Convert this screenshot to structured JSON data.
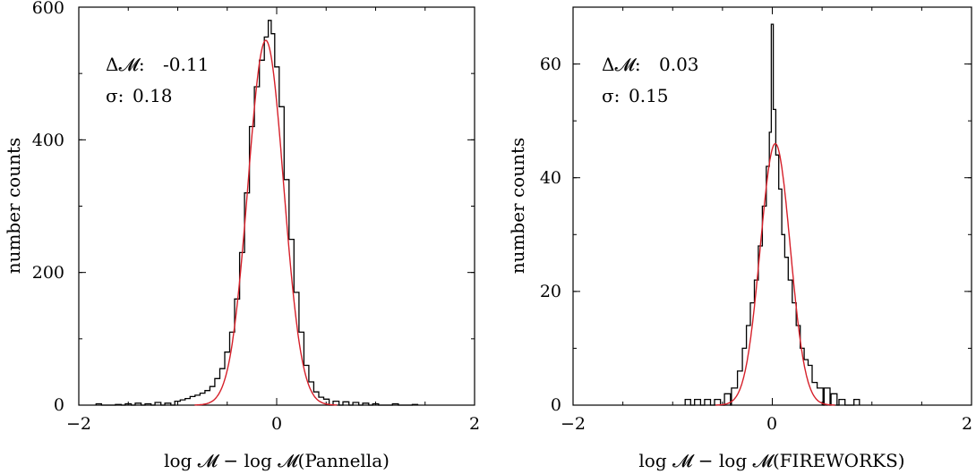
{
  "chart_data": [
    {
      "type": "histogram",
      "xlabel": "log 𝓜 − log 𝓜(Pannella)",
      "ylabel": "number counts",
      "xlim": [
        -2,
        2
      ],
      "ylim": [
        0,
        600
      ],
      "xticks": [
        -2,
        0,
        2
      ],
      "xtick_labels": [
        "−2",
        "0",
        "2"
      ],
      "yticks": [
        0,
        200,
        400,
        600
      ],
      "ytick_labels": [
        "0",
        "200",
        "400",
        "600"
      ],
      "annotations": [
        {
          "label": "Δ𝓜:",
          "value": "-0.11"
        },
        {
          "label": "σ:",
          "value": "0.18"
        }
      ],
      "fit": {
        "kind": "gaussian",
        "mean": -0.11,
        "sigma": 0.18,
        "amplitude": 550,
        "color": "#d6202a"
      },
      "hist_color": "#000000",
      "bins": [
        [
          -1.8,
          2
        ],
        [
          -1.6,
          1
        ],
        [
          -1.5,
          2
        ],
        [
          -1.4,
          3
        ],
        [
          -1.3,
          2
        ],
        [
          -1.2,
          4
        ],
        [
          -1.1,
          3
        ],
        [
          -1.0,
          6
        ],
        [
          -0.95,
          8
        ],
        [
          -0.9,
          10
        ],
        [
          -0.85,
          13
        ],
        [
          -0.8,
          15
        ],
        [
          -0.75,
          18
        ],
        [
          -0.7,
          22
        ],
        [
          -0.65,
          28
        ],
        [
          -0.6,
          40
        ],
        [
          -0.55,
          55
        ],
        [
          -0.5,
          80
        ],
        [
          -0.45,
          110
        ],
        [
          -0.4,
          160
        ],
        [
          -0.35,
          230
        ],
        [
          -0.3,
          320
        ],
        [
          -0.25,
          420
        ],
        [
          -0.2,
          480
        ],
        [
          -0.15,
          520
        ],
        [
          -0.1,
          555
        ],
        [
          -0.07,
          580
        ],
        [
          -0.04,
          560
        ],
        [
          0.0,
          510
        ],
        [
          0.05,
          450
        ],
        [
          0.1,
          340
        ],
        [
          0.15,
          250
        ],
        [
          0.2,
          170
        ],
        [
          0.25,
          110
        ],
        [
          0.3,
          60
        ],
        [
          0.35,
          35
        ],
        [
          0.4,
          20
        ],
        [
          0.45,
          12
        ],
        [
          0.5,
          9
        ],
        [
          0.6,
          6
        ],
        [
          0.7,
          5
        ],
        [
          0.8,
          4
        ],
        [
          0.9,
          3
        ],
        [
          1.0,
          2
        ],
        [
          1.2,
          2
        ],
        [
          1.4,
          1
        ]
      ]
    },
    {
      "type": "histogram",
      "xlabel": "log 𝓜 − log 𝓜(FIREWORKS)",
      "ylabel": "number counts",
      "xlim": [
        -2,
        2
      ],
      "ylim": [
        0,
        70
      ],
      "xticks": [
        -2,
        0,
        2
      ],
      "xtick_labels": [
        "−2",
        "0",
        "2"
      ],
      "yticks": [
        0,
        20,
        40,
        60
      ],
      "ytick_labels": [
        "0",
        "20",
        "40",
        "60"
      ],
      "annotations": [
        {
          "label": "Δ𝓜:",
          "value": "0.03"
        },
        {
          "label": "σ:",
          "value": "0.15"
        }
      ],
      "fit": {
        "kind": "gaussian",
        "mean": 0.03,
        "sigma": 0.15,
        "amplitude": 46,
        "color": "#d6202a"
      },
      "hist_color": "#000000",
      "bins": [
        [
          -0.85,
          1
        ],
        [
          -0.75,
          1
        ],
        [
          -0.65,
          1
        ],
        [
          -0.55,
          1
        ],
        [
          -0.45,
          2
        ],
        [
          -0.38,
          3
        ],
        [
          -0.32,
          6
        ],
        [
          -0.28,
          10
        ],
        [
          -0.24,
          14
        ],
        [
          -0.2,
          18
        ],
        [
          -0.16,
          22
        ],
        [
          -0.12,
          28
        ],
        [
          -0.08,
          35
        ],
        [
          -0.04,
          42
        ],
        [
          -0.02,
          48
        ],
        [
          0.0,
          67
        ],
        [
          0.02,
          52
        ],
        [
          0.05,
          44
        ],
        [
          0.08,
          38
        ],
        [
          0.11,
          30
        ],
        [
          0.14,
          26
        ],
        [
          0.18,
          22
        ],
        [
          0.22,
          18
        ],
        [
          0.26,
          14
        ],
        [
          0.3,
          10
        ],
        [
          0.34,
          8
        ],
        [
          0.38,
          7
        ],
        [
          0.42,
          4
        ],
        [
          0.48,
          3
        ],
        [
          0.55,
          3
        ],
        [
          0.62,
          2
        ],
        [
          0.7,
          1
        ],
        [
          0.85,
          1
        ]
      ]
    }
  ]
}
